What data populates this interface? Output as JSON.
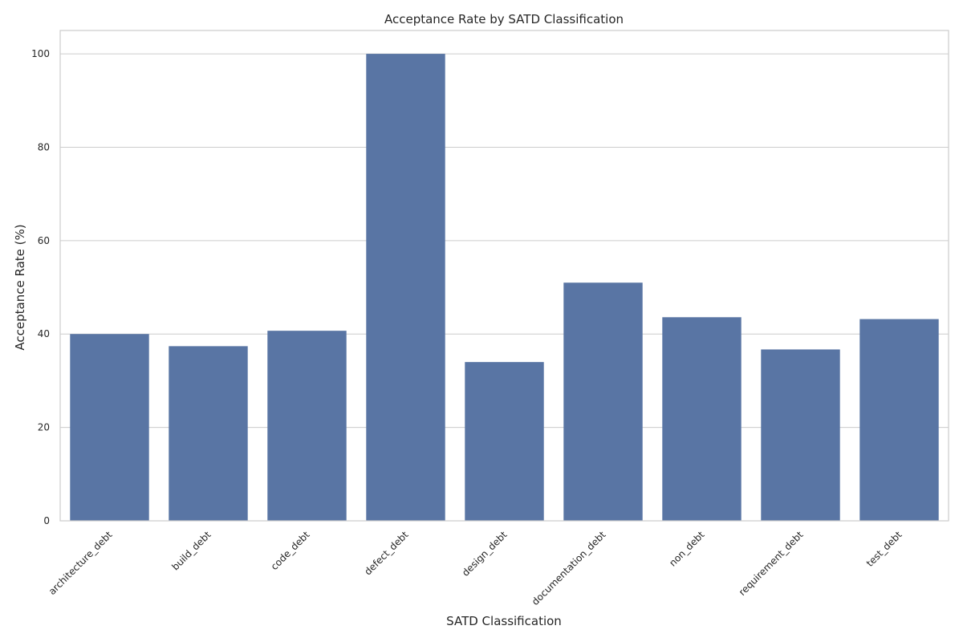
{
  "chart_data": {
    "type": "bar",
    "title": "Acceptance Rate by SATD Classification",
    "xlabel": "SATD Classification",
    "ylabel": "Acceptance Rate (%)",
    "categories": [
      "architecture_debt",
      "build_debt",
      "code_debt",
      "defect_debt",
      "design_debt",
      "documentation_debt",
      "non_debt",
      "requirement_debt",
      "test_debt"
    ],
    "values": [
      40.0,
      37.4,
      40.7,
      100.0,
      34.0,
      51.0,
      43.6,
      36.7,
      43.2
    ],
    "ylim": [
      0,
      105
    ],
    "yticks": [
      0,
      20,
      40,
      60,
      80,
      100
    ],
    "ytick_labels": [
      "0",
      "20",
      "40",
      "60",
      "80",
      "100"
    ],
    "grid": "horizontal",
    "bar_color": "#5975a4",
    "legend": "none"
  }
}
